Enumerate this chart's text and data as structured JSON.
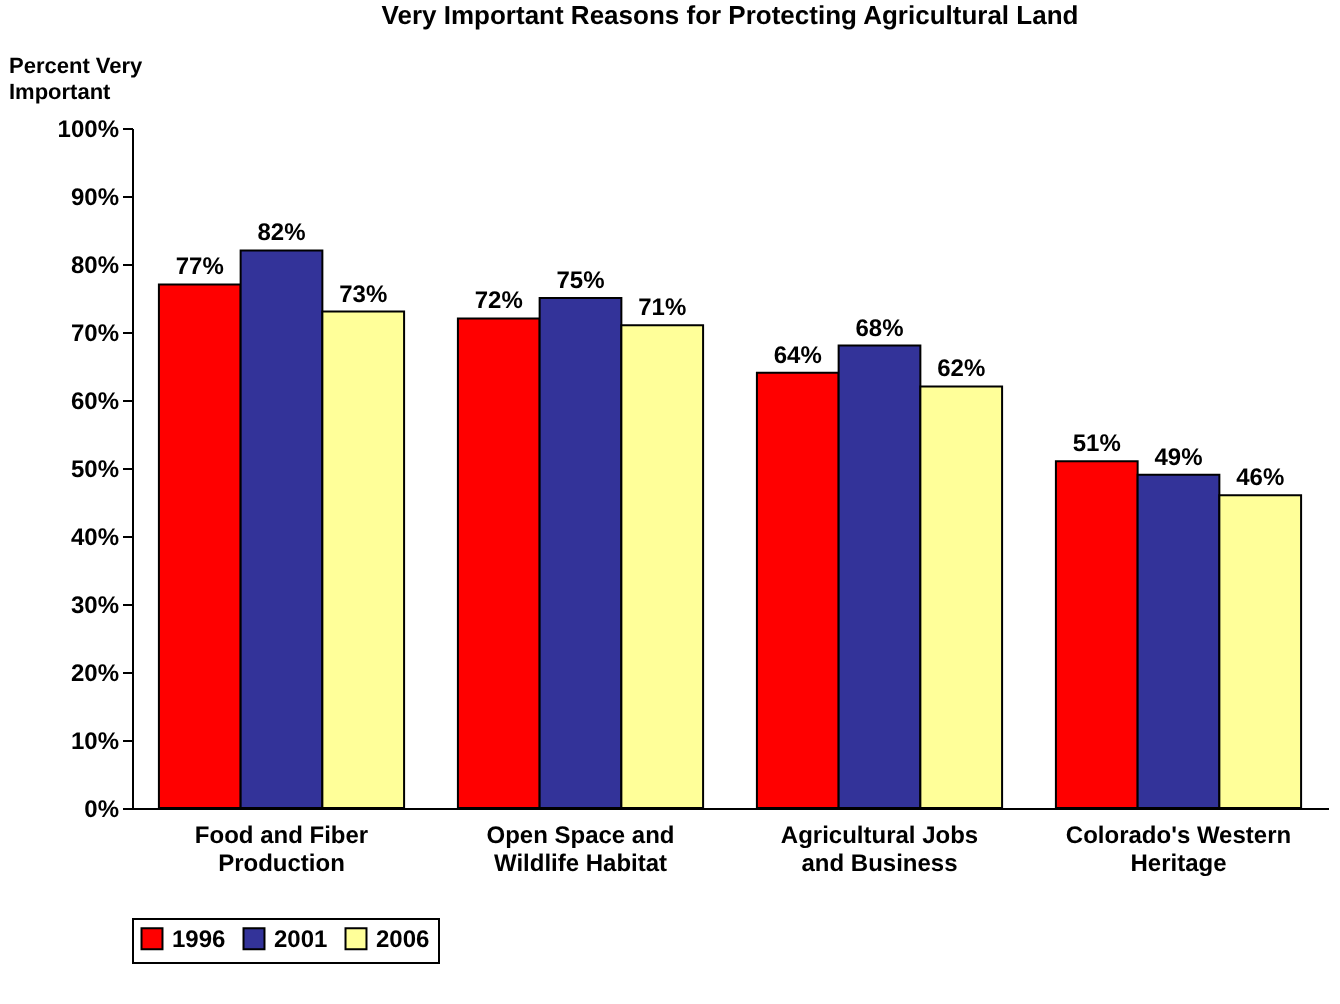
{
  "chart_data": {
    "type": "bar",
    "title": "Very Important Reasons for Protecting Agricultural Land",
    "ylabel": "Percent Very Important",
    "categories": [
      "Food and Fiber Production",
      "Open Space and Wildlife Habitat",
      "Agricultural Jobs and Business",
      "Colorado's Western Heritage"
    ],
    "series": [
      {
        "name": "1996",
        "color": "#ff0000",
        "values": [
          77,
          72,
          64,
          51
        ],
        "value_labels": [
          "77%",
          "72%",
          "64%",
          "51%"
        ]
      },
      {
        "name": "2001",
        "color": "#333399",
        "values": [
          82,
          75,
          68,
          49
        ],
        "value_labels": [
          "82%",
          "75%",
          "68%",
          "49%"
        ]
      },
      {
        "name": "2006",
        "color": "#ffff99",
        "values": [
          73,
          71,
          62,
          46
        ],
        "value_labels": [
          "73%",
          "71%",
          "62%",
          "46%"
        ]
      }
    ],
    "ylim": [
      0,
      100
    ],
    "yticks": [
      {
        "value": 0,
        "label": "0%"
      },
      {
        "value": 10,
        "label": "10%"
      },
      {
        "value": 20,
        "label": "20%"
      },
      {
        "value": 30,
        "label": "30%"
      },
      {
        "value": 40,
        "label": "40%"
      },
      {
        "value": 50,
        "label": "50%"
      },
      {
        "value": 60,
        "label": "60%"
      },
      {
        "value": 70,
        "label": "70%"
      },
      {
        "value": 80,
        "label": "80%"
      },
      {
        "value": 90,
        "label": "90%"
      },
      {
        "value": 100,
        "label": "100%"
      }
    ],
    "grid": false,
    "legend": "bottom"
  }
}
